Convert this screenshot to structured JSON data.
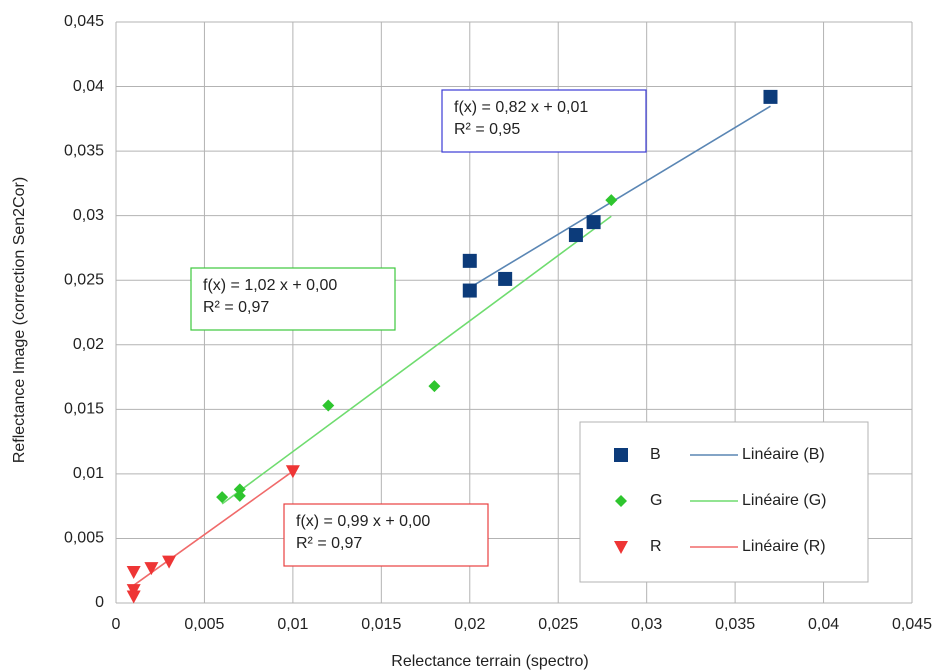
{
  "chart_data": {
    "type": "scatter",
    "xlabel": "Relectance terrain (spectro)",
    "ylabel": "Reflectance Image (correction Sen2Cor)",
    "xlim": [
      0,
      0.045
    ],
    "ylim": [
      0,
      0.045
    ],
    "xticks": [
      0,
      {
        "value": 0.005,
        "label": "0,005"
      },
      {
        "value": 0.01,
        "label": "0,01"
      },
      {
        "value": 0.015,
        "label": "0,015"
      },
      {
        "value": 0.02,
        "label": "0,02"
      },
      {
        "value": 0.025,
        "label": "0,025"
      },
      {
        "value": 0.03,
        "label": "0,03"
      },
      {
        "value": 0.035,
        "label": "0,035"
      },
      {
        "value": 0.04,
        "label": "0,04"
      },
      {
        "value": 0.045,
        "label": "0,045"
      }
    ],
    "yticks": [
      0,
      {
        "value": 0.005,
        "label": "0,005"
      },
      {
        "value": 0.01,
        "label": "0,01"
      },
      {
        "value": 0.015,
        "label": "0,015"
      },
      {
        "value": 0.02,
        "label": "0,02"
      },
      {
        "value": 0.025,
        "label": "0,025"
      },
      {
        "value": 0.03,
        "label": "0,03"
      },
      {
        "value": 0.035,
        "label": "0,035"
      },
      {
        "value": 0.04,
        "label": "0,04"
      },
      {
        "value": 0.045,
        "label": "0,045"
      }
    ],
    "grid": true,
    "legend": "lower right",
    "series": [
      {
        "name": "B",
        "color": "#0c3b7a",
        "marker": "square",
        "x": [
          0.02,
          0.02,
          0.022,
          0.026,
          0.027,
          0.037
        ],
        "values": [
          0.0265,
          0.0242,
          0.0251,
          0.0285,
          0.0295,
          0.0392
        ],
        "trendline": {
          "name": "Linéaire (B)",
          "color": "#5a86b4"
        }
      },
      {
        "name": "G",
        "color": "#2ec52e",
        "marker": "diamond",
        "x": [
          0.006,
          0.007,
          0.007,
          0.012,
          0.018,
          0.028
        ],
        "values": [
          0.0082,
          0.0083,
          0.0088,
          0.0153,
          0.0168,
          0.0312
        ],
        "trendline": {
          "name": "Linéaire (G)",
          "color": "#6fdc6f"
        }
      },
      {
        "name": "R",
        "color": "#ee3535",
        "marker": "triangle-down",
        "x": [
          0.001,
          0.001,
          0.001,
          0.002,
          0.003,
          0.01
        ],
        "values": [
          0.0024,
          0.001,
          0.0005,
          0.0027,
          0.0032,
          0.0102
        ],
        "trendline": {
          "name": "Linéaire (R)",
          "color": "#f06a6a"
        }
      }
    ],
    "annotations": [
      {
        "lines": [
          "f(x) = 0,82 x + 0,01",
          "R² = 0,95"
        ],
        "color": "#3b3bd6"
      },
      {
        "lines": [
          "f(x) = 1,02 x + 0,00",
          "R² = 0,97"
        ],
        "color": "#3cc83c"
      },
      {
        "lines": [
          "f(x) = 0,99 x + 0,00",
          "R² = 0,97"
        ],
        "color": "#e84040"
      }
    ]
  }
}
